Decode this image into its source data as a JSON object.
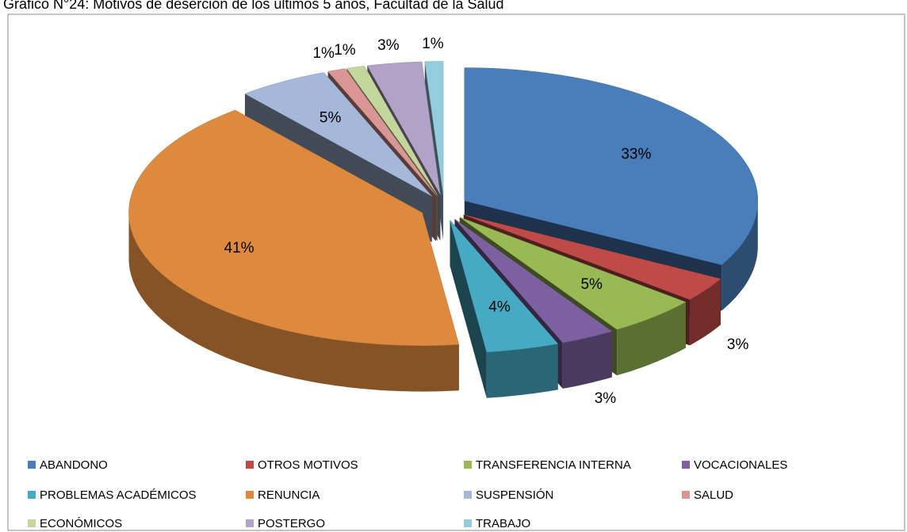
{
  "chart_data": {
    "type": "pie3d",
    "title": "Gráfico N°24: Motivos de deserción de los últimos 5 años, Facultad de la Salud",
    "categories": [
      "ABANDONO",
      "OTROS MOTIVOS",
      "TRANSFERENCIA INTERNA",
      "VOCACIONALES",
      "PROBLEMAS ACADÉMICOS",
      "RENUNCIA",
      "SUSPENSIÓN",
      "SALUD",
      "ECONÓMICOS",
      "POSTERGO",
      "TRABAJO"
    ],
    "values": [
      33,
      3,
      5,
      3,
      4,
      41,
      5,
      1,
      1,
      3,
      1
    ],
    "value_labels": [
      "33%",
      "3%",
      "5%",
      "3%",
      "4%",
      "41%",
      "5%",
      "1%",
      "1%",
      "3%",
      "1%"
    ],
    "colors": [
      "#4a7ebb",
      "#be4b48",
      "#98b954",
      "#7d60a0",
      "#46aac5",
      "#dd8a3e",
      "#a5b8d9",
      "#d99694",
      "#c3d69b",
      "#b3a2c7",
      "#93cddd"
    ],
    "legend": "bottom"
  }
}
